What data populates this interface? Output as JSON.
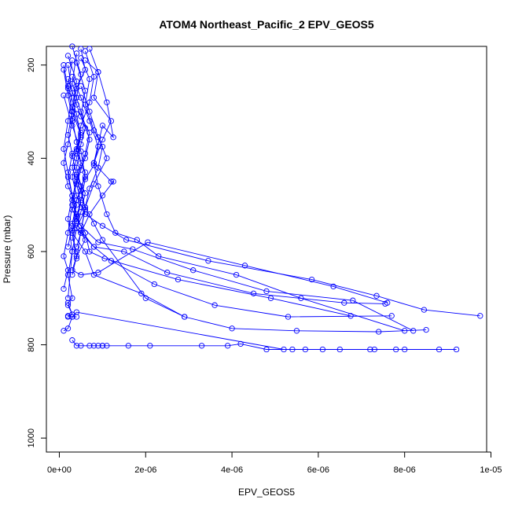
{
  "chart_data": {
    "type": "line",
    "title": "ATOM4 Northeast_Pacific_2 EPV_GEOS5",
    "xlabel": "EPV_GEOS5",
    "ylabel": "Pressure (mbar)",
    "xlim": [
      -3e-07,
      9.9e-06
    ],
    "ylim": [
      1030,
      160
    ],
    "y_inverted": true,
    "grid": false,
    "x_ticks": [
      0,
      2e-06,
      4e-06,
      6e-06,
      8e-06,
      1e-05
    ],
    "x_tick_labels": [
      "0e+00",
      "2e-06",
      "4e-06",
      "6e-06",
      "8e-06",
      "1e-05"
    ],
    "y_ticks": [
      200,
      400,
      600,
      800,
      1000
    ],
    "y_tick_labels": [
      "200",
      "400",
      "600",
      "800",
      "1000"
    ],
    "color": "#0000ff",
    "marker": "open-circle",
    "series": [
      {
        "x": [
          3e-07,
          5e-07,
          4e-07,
          3e-07,
          2e-07,
          1e-07,
          2e-07,
          4e-07,
          3e-07,
          5e-07,
          6e-07,
          4e-07,
          3e-07,
          5e-07,
          9e-07,
          2.05e-06,
          4.3e-06,
          6.35e-06,
          7.6e-06
        ],
        "y": [
          160,
          220,
          270,
          320,
          370,
          410,
          460,
          500,
          540,
          560,
          575,
          610,
          640,
          650,
          645,
          580,
          630,
          675,
          710
        ]
      },
      {
        "x": [
          5e-07,
          6e-07,
          4e-07,
          3e-07,
          5e-07,
          4e-07,
          3e-07,
          4e-07,
          6e-07,
          1e-06,
          1.55e-06,
          3.45e-06,
          5.85e-06,
          7.35e-06,
          8.45e-06,
          9.75e-06
        ],
        "y": [
          165,
          210,
          250,
          300,
          350,
          400,
          440,
          480,
          520,
          545,
          575,
          620,
          660,
          695,
          725,
          738
        ]
      },
      {
        "x": [
          6e-07,
          8e-07,
          7e-07,
          5e-07,
          4e-07,
          3e-07,
          5e-07,
          6e-07,
          5e-07,
          8e-07,
          1.5e-06,
          2.5e-06,
          4.5e-06,
          6.6e-06,
          7.55e-06
        ],
        "y": [
          170,
          225,
          280,
          330,
          380,
          420,
          470,
          510,
          555,
          590,
          600,
          645,
          690,
          710,
          712
        ]
      },
      {
        "x": [
          4e-07,
          3e-07,
          5e-07,
          7e-07,
          6e-07,
          4e-07,
          3e-07,
          4e-07,
          6e-07,
          7e-07,
          1.05e-06,
          2.75e-06,
          4.9e-06,
          6.75e-06
        ],
        "y": [
          175,
          240,
          300,
          360,
          400,
          440,
          490,
          530,
          560,
          600,
          615,
          660,
          700,
          738
        ]
      },
      {
        "x": [
          7e-07,
          9e-07,
          8e-07,
          1.2e-06,
          1e-06,
          8e-07,
          9e-07,
          1.1e-06,
          1.3e-06,
          1.8e-06,
          2.3e-06,
          4.1e-06,
          5.6e-06,
          8e-06
        ],
        "y": [
          165,
          215,
          270,
          320,
          360,
          410,
          460,
          520,
          560,
          575,
          610,
          650,
          700,
          770
        ]
      },
      {
        "x": [
          1e-07,
          2e-07,
          3e-07,
          2e-07,
          3e-07,
          2e-07,
          3e-07,
          4e-07,
          3e-07,
          6e-07,
          8e-07,
          1.9e-06,
          2.9e-06,
          4e-06,
          5.5e-06,
          7.4e-06,
          8.5e-06
        ],
        "y": [
          200,
          250,
          300,
          350,
          390,
          440,
          480,
          520,
          560,
          600,
          650,
          690,
          740,
          765,
          770,
          772,
          768
        ]
      },
      {
        "x": [
          2e-07,
          4e-07,
          3e-07,
          5e-07,
          4e-07,
          6e-07,
          5e-07,
          3e-07,
          5e-07,
          9e-07,
          1.7e-06,
          3.1e-06,
          4.8e-06,
          6.8e-06,
          8.2e-06
        ],
        "y": [
          180,
          235,
          290,
          345,
          385,
          430,
          470,
          510,
          545,
          580,
          595,
          640,
          685,
          705,
          770
        ]
      },
      {
        "x": [
          3e-07,
          2e-07,
          4e-07,
          5e-07,
          3e-07,
          4e-07,
          6e-07,
          5e-07,
          4e-07,
          8e-07,
          1.2e-06,
          2.2e-06,
          3.6e-06,
          5.3e-06,
          7.7e-06
        ],
        "y": [
          190,
          245,
          305,
          355,
          395,
          435,
          475,
          515,
          550,
          590,
          620,
          670,
          715,
          740,
          738
        ]
      },
      {
        "x": [
          5e-07,
          7e-07,
          6e-07,
          8e-07,
          1e-06,
          9e-07,
          7e-07,
          6e-07,
          8e-07,
          1e-06,
          2e-06,
          2.9e-06
        ],
        "y": [
          185,
          230,
          285,
          340,
          375,
          420,
          465,
          505,
          540,
          575,
          700,
          740
        ]
      },
      {
        "x": [
          2e-07,
          3e-07,
          2e-07,
          1e-07,
          2e-07,
          3e-07,
          2e-07,
          3e-07,
          2e-07,
          3e-07,
          2e-07,
          3e-07,
          2e-07
        ],
        "y": [
          200,
          260,
          320,
          380,
          430,
          480,
          530,
          600,
          650,
          700,
          710,
          735,
          740
        ]
      },
      {
        "x": [
          1e-07,
          2e-07,
          3e-07,
          4e-07,
          5e-07,
          4e-07,
          3e-07,
          2e-07,
          1e-07,
          2e-07,
          1e-07
        ],
        "y": [
          210,
          265,
          315,
          365,
          410,
          450,
          500,
          560,
          610,
          640,
          680
        ]
      },
      {
        "x": [
          4e-07,
          6e-07,
          5e-07,
          7e-07,
          6e-07,
          5e-07,
          4e-07,
          5e-07,
          4e-07,
          3e-07,
          4e-07
        ],
        "y": [
          195,
          255,
          310,
          345,
          390,
          425,
          455,
          495,
          535,
          570,
          600
        ]
      },
      {
        "x": [
          6e-07,
          9e-07,
          1.1e-06,
          1.25e-06,
          1e-06,
          8e-07,
          1.2e-06,
          1.25e-06,
          1e-06,
          7e-07,
          5e-07,
          4e-07
        ],
        "y": [
          190,
          215,
          280,
          355,
          330,
          410,
          450,
          450,
          480,
          520,
          560,
          590
        ]
      },
      {
        "x": [
          3e-07,
          5e-07,
          7e-07,
          9e-07,
          8e-07,
          6e-07,
          5e-07,
          4e-07,
          3e-07,
          4e-07,
          3e-07
        ],
        "y": [
          225,
          270,
          320,
          375,
          415,
          445,
          490,
          525,
          555,
          610,
          650
        ]
      },
      {
        "x": [
          2e-07,
          4e-07,
          6e-07,
          5e-07,
          4e-07,
          5e-07,
          6e-07,
          4e-07,
          3e-07,
          2e-07
        ],
        "y": [
          230,
          285,
          335,
          370,
          420,
          460,
          510,
          550,
          600,
          700
        ]
      },
      {
        "x": [
          3e-07,
          4e-07,
          5e-07,
          7e-07,
          8e-07,
          9e-07,
          1e-06,
          1e-06,
          1.1e-06,
          1.6e-06,
          2.1e-06,
          3.3e-06,
          3.9e-06,
          4.2e-06,
          4.8e-06,
          5.7e-06,
          7.2e-06,
          8.8e-06,
          9.2e-06
        ],
        "y": [
          790,
          802,
          802,
          802,
          802,
          802,
          802,
          802,
          802,
          802,
          802,
          802,
          802,
          798,
          810,
          810,
          810,
          810,
          810
        ]
      },
      {
        "x": [
          1e-07,
          2e-07,
          3e-07,
          4e-07,
          5.2e-06,
          5.4e-06,
          6.1e-06,
          6.5e-06,
          7.3e-06,
          7.8e-06,
          8e-06
        ],
        "y": [
          770,
          765,
          740,
          730,
          810,
          810,
          810,
          810,
          810,
          810,
          810
        ]
      },
      {
        "x": [
          2e-07,
          3e-07,
          2e-07,
          3e-07,
          4e-07
        ],
        "y": [
          715,
          735,
          738,
          740,
          740
        ]
      },
      {
        "x": [
          5e-07,
          7e-07,
          9e-07,
          1.1e-06,
          8e-07,
          6e-07,
          5e-07,
          4e-07
        ],
        "y": [
          245,
          300,
          355,
          400,
          455,
          505,
          555,
          615
        ]
      },
      {
        "x": [
          1e-07,
          3e-07,
          5e-07,
          6e-07,
          4e-07,
          3e-07,
          2e-07
        ],
        "y": [
          265,
          330,
          385,
          440,
          490,
          545,
          590
        ]
      }
    ]
  }
}
